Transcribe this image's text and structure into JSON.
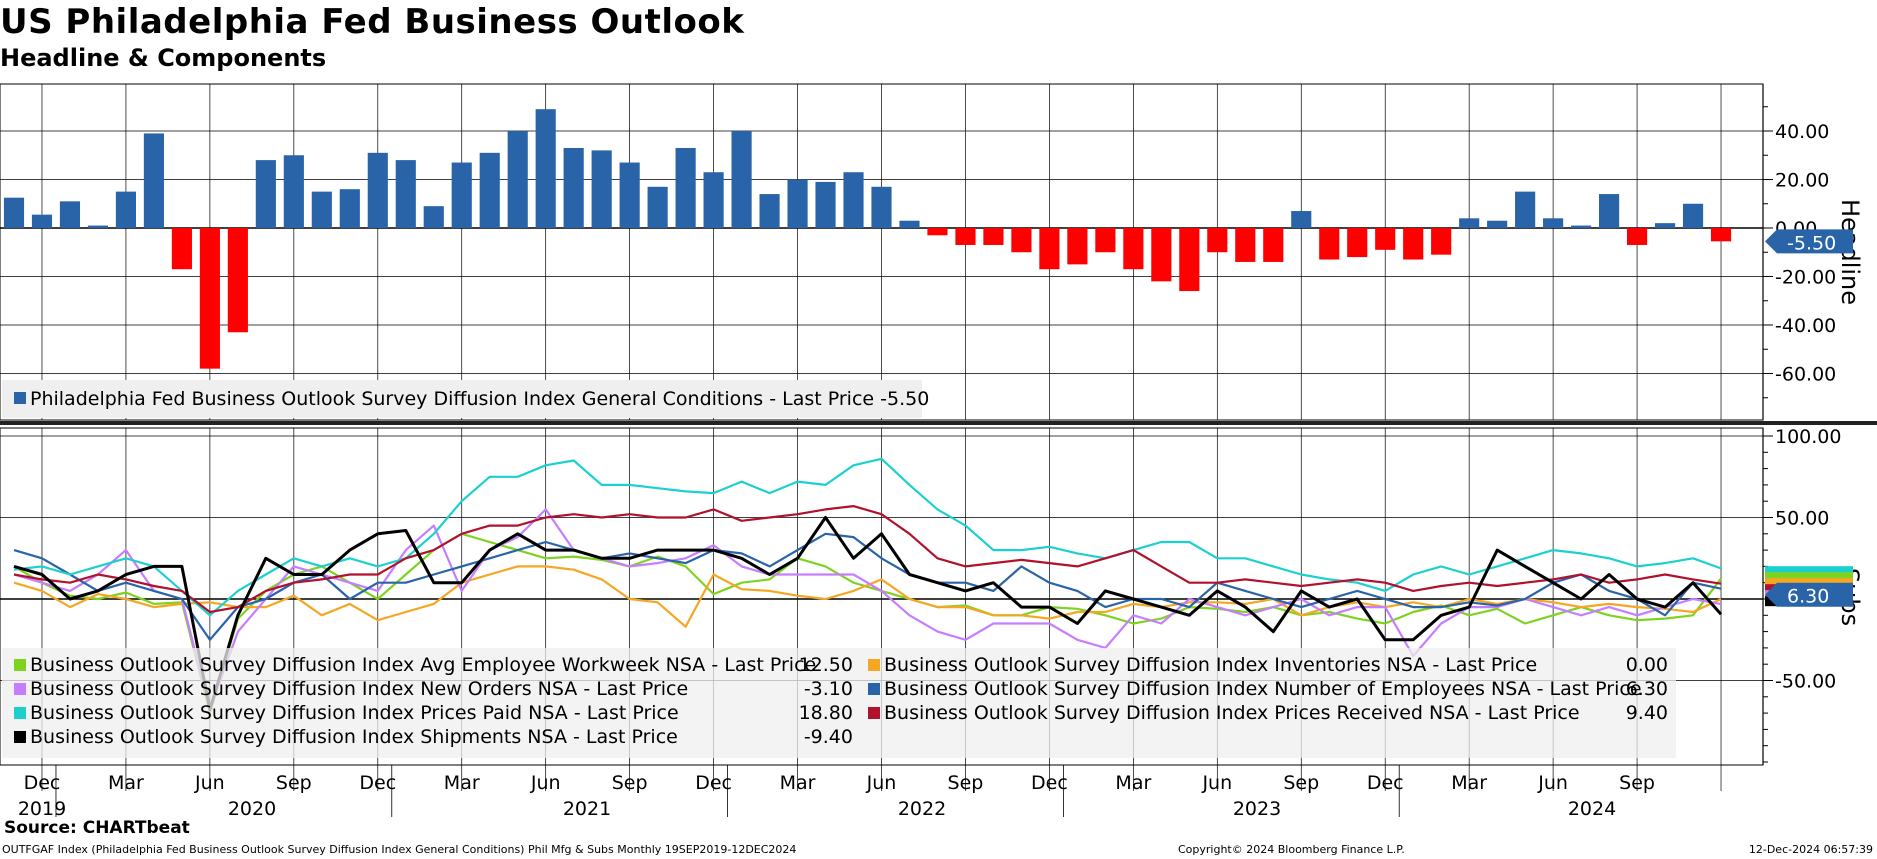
{
  "title": "US Philadelphia Fed Business Outlook",
  "subtitle": "Headline & Components",
  "source": "Source: CHARTbeat",
  "footer_left": "OUTFGAF Index (Philadelphia Fed Business Outlook Survey Diffusion Index General Conditions) Phil Mfg & Subs  Monthly 19SEP2019-12DEC2024",
  "footer_mid": "Copyright© 2024 Bloomberg Finance L.P.",
  "footer_right": "12-Dec-2024 06:57:39",
  "colors": {
    "positive_bar": "#2a64a8",
    "negative_bar": "#ff0000",
    "grid": "#000000"
  },
  "chart_data": [
    {
      "type": "bar",
      "panel_label": "Headline",
      "yticks": [
        "40.00",
        "20.00",
        "0.00",
        "-20.00",
        "-40.00",
        "-60.00"
      ],
      "ylim": [
        -70,
        60
      ],
      "last_value_label": "-5.50",
      "legend": [
        {
          "name": "Philadelphia Fed Business Outlook Survey Diffusion Index General Conditions - Last Price -5.50",
          "color": "#2a64a8"
        }
      ],
      "months": [
        "2019-11",
        "2019-12",
        "2020-01",
        "2020-02",
        "2020-03",
        "2020-04",
        "2020-05",
        "2020-06",
        "2020-07",
        "2020-08",
        "2020-09",
        "2020-10",
        "2020-11",
        "2020-12",
        "2021-01",
        "2021-02",
        "2021-03",
        "2021-04",
        "2021-05",
        "2021-06",
        "2021-07",
        "2021-08",
        "2021-09",
        "2021-10",
        "2021-11",
        "2021-12",
        "2022-01",
        "2022-02",
        "2022-03",
        "2022-04",
        "2022-05",
        "2022-06",
        "2022-07",
        "2022-08",
        "2022-09",
        "2022-10",
        "2022-11",
        "2022-12",
        "2023-01",
        "2023-02",
        "2023-03",
        "2023-04",
        "2023-05",
        "2023-06",
        "2023-07",
        "2023-08",
        "2023-09",
        "2023-10",
        "2023-11",
        "2023-12",
        "2024-01",
        "2024-02",
        "2024-03",
        "2024-04",
        "2024-05",
        "2024-06",
        "2024-07",
        "2024-08",
        "2024-09",
        "2024-10",
        "2024-11",
        "2024-12"
      ],
      "values": [
        12.5,
        5.5,
        11,
        1,
        15,
        39,
        -17,
        -58,
        -43,
        28,
        30,
        15,
        16,
        31,
        28,
        9,
        27,
        31,
        40,
        49,
        33,
        32,
        27,
        17,
        33,
        23,
        40,
        14,
        20,
        19,
        23,
        17,
        3,
        -3,
        -7,
        -7,
        -10,
        -17,
        -15,
        -10,
        -17,
        -22,
        -26,
        -10,
        -14,
        -14,
        7,
        -13,
        -12,
        -9,
        -13,
        -11,
        4,
        3,
        15,
        4,
        1,
        14,
        -7,
        2,
        10,
        -5.5
      ]
    },
    {
      "type": "line",
      "panel_label": "Subs",
      "yticks": [
        "100.00",
        "50.00",
        "0.00",
        "-50.00"
      ],
      "ylim": [
        -100,
        105
      ],
      "last_value_label": "6.30",
      "x_month_labels": [
        "Dec",
        "Mar",
        "Jun",
        "Sep",
        "Dec",
        "Mar",
        "Jun",
        "Sep",
        "Dec",
        "Mar",
        "Jun",
        "Sep",
        "Dec",
        "Mar",
        "Jun",
        "Sep",
        "Dec",
        "Mar",
        "Jun",
        "Sep"
      ],
      "x_year_labels": [
        "2019",
        "2020",
        "2021",
        "2022",
        "2023",
        "2024"
      ],
      "series": [
        {
          "name": "Business Outlook Survey Diffusion Index Avg Employee Workweek NSA - Last Price",
          "last": "12.50",
          "color": "#7ed321",
          "values": [
            20,
            10,
            2,
            0,
            4,
            -3,
            -2,
            -70,
            -12,
            5,
            15,
            20,
            10,
            0,
            15,
            30,
            40,
            35,
            30,
            25,
            26,
            24,
            20,
            26,
            20,
            3,
            10,
            12,
            25,
            20,
            10,
            5,
            0,
            -5,
            -4,
            -10,
            -10,
            -5,
            -6,
            -10,
            -15,
            -12,
            -5,
            -6,
            -8,
            -5,
            -10,
            -8,
            -12,
            -15,
            -8,
            -4,
            -10,
            -6,
            -15,
            -10,
            -5,
            -10,
            -13,
            -12,
            -10,
            12.5
          ]
        },
        {
          "name": "Business Outlook Survey Diffusion Index Inventories NSA - Last Price",
          "last": "0.00",
          "color": "#f5a623",
          "values": [
            10,
            5,
            -5,
            3,
            0,
            -5,
            -3,
            -2,
            -5,
            -5,
            2,
            -10,
            -3,
            -13,
            -8,
            -3,
            10,
            15,
            20,
            20,
            18,
            12,
            0,
            -2,
            -17,
            15,
            6,
            5,
            2,
            0,
            5,
            12,
            0,
            -5,
            -5,
            -10,
            -10,
            -12,
            -8,
            -8,
            -3,
            -5,
            -2,
            -2,
            -3,
            0,
            -10,
            -5,
            -2,
            -5,
            -2,
            -5,
            0,
            -3,
            0,
            -2,
            -5,
            -3,
            -5,
            -6,
            -8,
            0
          ]
        },
        {
          "name": "Business Outlook Survey Diffusion Index New Orders NSA - Last Price",
          "last": "-3.10",
          "color": "#c77dff",
          "values": [
            15,
            10,
            5,
            15,
            30,
            5,
            0,
            -68,
            -20,
            0,
            20,
            15,
            10,
            5,
            30,
            45,
            5,
            30,
            38,
            55,
            30,
            25,
            20,
            22,
            25,
            33,
            20,
            15,
            15,
            15,
            15,
            5,
            -10,
            -20,
            -25,
            -15,
            -15,
            -15,
            -25,
            -30,
            -10,
            -15,
            0,
            -5,
            -10,
            -5,
            0,
            -10,
            -5,
            -5,
            -35,
            -15,
            -5,
            -5,
            0,
            -5,
            -10,
            -5,
            -10,
            -5,
            0,
            -3.1
          ]
        },
        {
          "name": "Business Outlook Survey Diffusion Index Number of Employees NSA - Last Price",
          "last": "6.30",
          "color": "#2a64a8",
          "values": [
            30,
            25,
            15,
            5,
            10,
            5,
            0,
            -25,
            -5,
            0,
            10,
            15,
            0,
            10,
            10,
            15,
            20,
            25,
            30,
            35,
            30,
            25,
            28,
            25,
            22,
            30,
            28,
            20,
            30,
            40,
            38,
            25,
            15,
            10,
            10,
            5,
            20,
            10,
            5,
            -5,
            0,
            0,
            -5,
            10,
            5,
            0,
            -5,
            0,
            5,
            0,
            -5,
            -5,
            -2,
            -4,
            0,
            10,
            15,
            5,
            0,
            -10,
            10,
            6.3
          ]
        },
        {
          "name": "Business Outlook Survey Diffusion Index Prices Paid NSA - Last Price",
          "last": "18.80",
          "color": "#1cd0d0",
          "values": [
            18,
            20,
            15,
            20,
            25,
            20,
            5,
            -10,
            5,
            15,
            25,
            20,
            25,
            20,
            25,
            40,
            60,
            75,
            75,
            82,
            85,
            70,
            70,
            68,
            66,
            65,
            72,
            65,
            72,
            70,
            82,
            86,
            70,
            55,
            45,
            30,
            30,
            32,
            28,
            25,
            30,
            35,
            35,
            25,
            25,
            20,
            15,
            12,
            10,
            5,
            15,
            20,
            15,
            20,
            25,
            30,
            28,
            25,
            20,
            22,
            25,
            18.8
          ]
        },
        {
          "name": "Business Outlook Survey Diffusion Index Prices Received NSA - Last Price",
          "last": "9.40",
          "color": "#b0122e",
          "values": [
            15,
            12,
            10,
            15,
            12,
            8,
            5,
            -8,
            -5,
            5,
            10,
            12,
            15,
            15,
            25,
            30,
            40,
            45,
            45,
            50,
            52,
            50,
            52,
            50,
            50,
            55,
            48,
            50,
            52,
            55,
            57,
            52,
            40,
            25,
            20,
            22,
            24,
            22,
            20,
            25,
            30,
            20,
            10,
            10,
            12,
            10,
            8,
            10,
            12,
            10,
            5,
            8,
            10,
            8,
            10,
            12,
            15,
            10,
            12,
            15,
            12,
            9.4
          ]
        },
        {
          "name": "Business Outlook Survey Diffusion Index Shipments NSA - Last Price",
          "last": "-9.40",
          "color": "#000000",
          "values": [
            20,
            15,
            0,
            5,
            15,
            20,
            20,
            -68,
            -10,
            25,
            15,
            15,
            30,
            40,
            42,
            10,
            10,
            30,
            40,
            30,
            30,
            25,
            25,
            30,
            30,
            30,
            25,
            15,
            25,
            50,
            25,
            40,
            15,
            10,
            5,
            10,
            -5,
            -5,
            -15,
            5,
            0,
            -5,
            -10,
            5,
            -5,
            -20,
            5,
            -5,
            0,
            -25,
            -25,
            -10,
            -5,
            30,
            20,
            10,
            0,
            15,
            0,
            -5,
            10,
            -9.4
          ]
        }
      ]
    }
  ]
}
